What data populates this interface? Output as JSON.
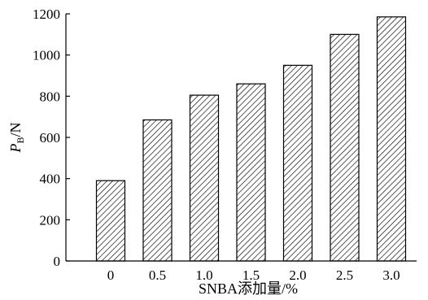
{
  "chart_data": {
    "type": "bar",
    "categories": [
      "0",
      "0.5",
      "1.0",
      "1.5",
      "2.0",
      "2.5",
      "3.0"
    ],
    "values": [
      390,
      685,
      805,
      860,
      950,
      1100,
      1185
    ],
    "ylim": [
      0,
      1200
    ],
    "yticks": [
      "0",
      "200",
      "400",
      "600",
      "800",
      "1000",
      "1200"
    ],
    "ylabel_main": "P",
    "ylabel_sub": "B",
    "ylabel_unit": "/N",
    "xlabel": "SNBA添加量/%",
    "bar_pattern": "diagonal-hatch",
    "grid": false,
    "legend": "none"
  }
}
